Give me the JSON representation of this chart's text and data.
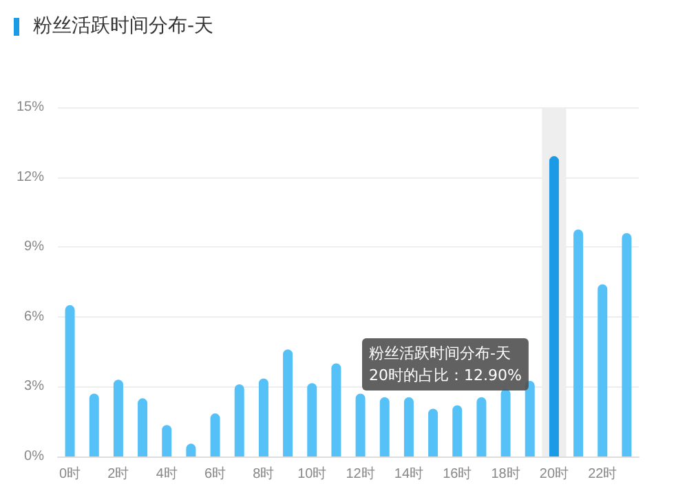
{
  "chart_data": {
    "type": "bar",
    "title": "粉丝活跃时间分布-天",
    "categories": [
      "0时",
      null,
      "2时",
      null,
      "4时",
      null,
      "6时",
      null,
      "8时",
      null,
      "10时",
      null,
      "12时",
      null,
      "14时",
      null,
      "16时",
      null,
      "18时",
      null,
      "20时",
      null,
      "22时",
      null
    ],
    "values": [
      6.5,
      2.7,
      3.3,
      2.5,
      1.35,
      0.55,
      1.85,
      3.1,
      3.35,
      4.6,
      3.15,
      4.0,
      2.7,
      2.55,
      2.55,
      2.05,
      2.2,
      2.55,
      2.9,
      3.25,
      12.9,
      9.75,
      7.4,
      9.6
    ],
    "colors": [
      "#55c1f7",
      "#55c1f7",
      "#55c1f7",
      "#55c1f7",
      "#55c1f7",
      "#55c1f7",
      "#55c1f7",
      "#55c1f7",
      "#55c1f7",
      "#55c1f7",
      "#55c1f7",
      "#55c1f7",
      "#55c1f7",
      "#55c1f7",
      "#55c1f7",
      "#55c1f7",
      "#55c1f7",
      "#55c1f7",
      "#55c1f7",
      "#55c1f7",
      "#1b9be6",
      "#55c1f7",
      "#55c1f7",
      "#55c1f7"
    ],
    "ylim": [
      0,
      15
    ],
    "yticks": [
      {
        "value": 0,
        "label": "0%"
      },
      {
        "value": 3,
        "label": "3%"
      },
      {
        "value": 6,
        "label": "6%"
      },
      {
        "value": 9,
        "label": "9%"
      },
      {
        "value": 12,
        "label": "12%"
      },
      {
        "value": 15,
        "label": "15%"
      }
    ],
    "grid": "y",
    "bands": [
      {
        "axis": "x",
        "from": "20时",
        "to": "20时",
        "color": "#eeeeee"
      }
    ],
    "annotations": [
      "粉丝活跃时间分布-天\n20时的占比：12.90%"
    ]
  }
}
